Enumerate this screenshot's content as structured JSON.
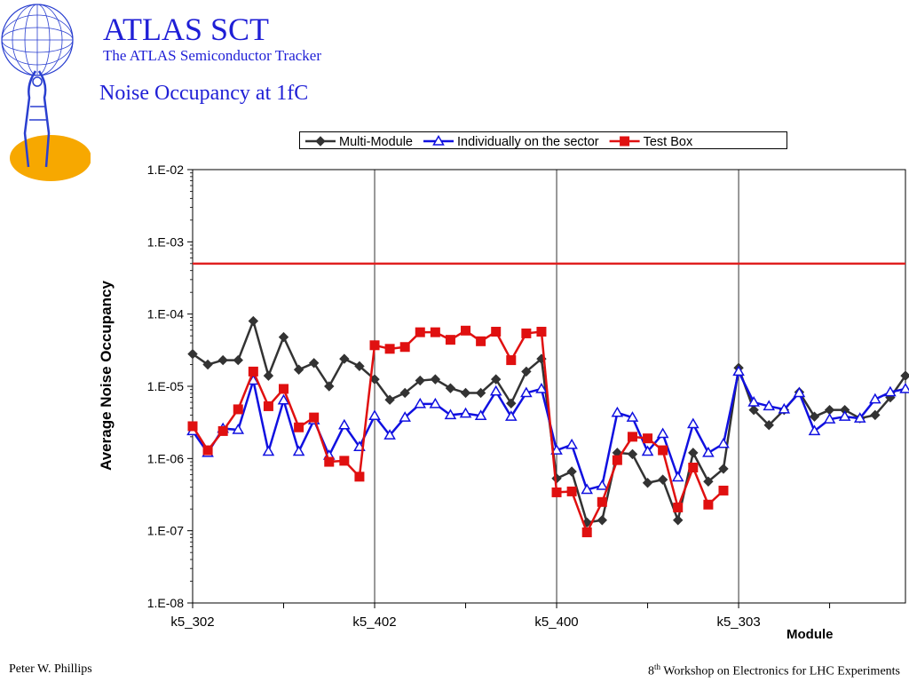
{
  "header": {
    "title": "ATLAS SCT",
    "subtitle": "The ATLAS Semiconductor Tracker",
    "logo_icon": "atlas-globe-logo-icon"
  },
  "slide": {
    "title": "Noise Occupancy at 1fC"
  },
  "footer": {
    "author": "Peter W. Phillips",
    "workshop_num": "8",
    "workshop_sup": "th",
    "workshop_text": " Workshop on Electronics for LHC Experiments"
  },
  "colors": {
    "accent": "#1f1fd6",
    "logo_orange": "#f7a800",
    "grid": "#000000"
  },
  "chart_data": {
    "type": "line",
    "title": "",
    "xlabel": "Module",
    "ylabel": "Average Noise Occupancy",
    "y_scale": "log",
    "ylim": [
      1e-08,
      0.01
    ],
    "y_ticks": [
      {
        "value": 0.01,
        "label": "1.E-02"
      },
      {
        "value": 0.001,
        "label": "1.E-03"
      },
      {
        "value": 0.0001,
        "label": "1.E-04"
      },
      {
        "value": 1e-05,
        "label": "1.E-05"
      },
      {
        "value": 1e-06,
        "label": "1.E-06"
      },
      {
        "value": 1e-07,
        "label": "1.E-07"
      },
      {
        "value": 1e-08,
        "label": "1.E-08"
      }
    ],
    "xlim": [
      0,
      47
    ],
    "x_tick_labels": [
      {
        "x": 0,
        "label": "k5_302"
      },
      {
        "x": 12,
        "label": "k5_402"
      },
      {
        "x": 24,
        "label": "k5_400"
      },
      {
        "x": 36,
        "label": "k5_303"
      }
    ],
    "x_minor_ticks": [
      6,
      18,
      30,
      42
    ],
    "x_vertical_grid": [
      12,
      24,
      36
    ],
    "legend_position": "top",
    "reference_line": {
      "y": 0.0005,
      "color": "#e02020"
    },
    "series": [
      {
        "name": "Multi-Module",
        "color": "#333333",
        "marker": "diamond",
        "x": [
          0,
          1,
          2,
          3,
          4,
          5,
          6,
          7,
          8,
          9,
          10,
          11,
          12,
          13,
          14,
          15,
          16,
          17,
          18,
          19,
          20,
          21,
          22,
          23,
          24,
          25,
          26,
          27,
          28,
          29,
          30,
          31,
          32,
          33,
          34,
          35,
          36,
          37,
          38,
          39,
          40,
          41,
          42,
          43,
          44,
          45,
          46,
          47
        ],
        "values": [
          2.8e-05,
          2e-05,
          2.3e-05,
          2.3e-05,
          8e-05,
          1.4e-05,
          4.8e-05,
          1.7e-05,
          2.1e-05,
          1e-05,
          2.4e-05,
          1.9e-05,
          1.25e-05,
          6.5e-06,
          8.1e-06,
          1.2e-05,
          1.25e-05,
          9.4e-06,
          8.1e-06,
          8.1e-06,
          1.25e-05,
          5.8e-06,
          1.6e-05,
          2.4e-05,
          5.3e-07,
          6.6e-07,
          1.3e-07,
          1.4e-07,
          1.2e-06,
          1.15e-06,
          4.6e-07,
          5.1e-07,
          1.4e-07,
          1.2e-06,
          4.8e-07,
          7.2e-07,
          1.8e-05,
          4.7e-06,
          2.9e-06,
          4.7e-06,
          8.3e-06,
          3.8e-06,
          4.7e-06,
          4.7e-06,
          3.6e-06,
          4e-06,
          7e-06,
          1.4e-05
        ]
      },
      {
        "name": "Individually on the sector",
        "color": "#1010e0",
        "marker": "triangle",
        "x": [
          0,
          1,
          2,
          3,
          4,
          5,
          6,
          7,
          8,
          9,
          10,
          11,
          12,
          13,
          14,
          15,
          16,
          17,
          18,
          19,
          20,
          21,
          22,
          23,
          24,
          25,
          26,
          27,
          28,
          29,
          30,
          31,
          32,
          33,
          34,
          35,
          36,
          37,
          38,
          39,
          40,
          41,
          42,
          43,
          44,
          45,
          46,
          47
        ],
        "values": [
          2.4e-06,
          1.2e-06,
          2.6e-06,
          2.5e-06,
          1.2e-05,
          1.25e-06,
          6.4e-06,
          1.25e-06,
          3.4e-06,
          1.1e-06,
          2.9e-06,
          1.45e-06,
          3.9e-06,
          2.1e-06,
          3.7e-06,
          5.7e-06,
          5.7e-06,
          4e-06,
          4.2e-06,
          3.9e-06,
          8.5e-06,
          3.8e-06,
          8.1e-06,
          9.2e-06,
          1.3e-06,
          1.55e-06,
          3.7e-07,
          4.2e-07,
          4.3e-06,
          3.7e-06,
          1.25e-06,
          2.2e-06,
          5.5e-07,
          3e-06,
          1.2e-06,
          1.6e-06,
          1.6e-05,
          6e-06,
          5.3e-06,
          4.8e-06,
          8.1e-06,
          2.4e-06,
          3.5e-06,
          3.8e-06,
          3.6e-06,
          6.6e-06,
          8.3e-06,
          9.2e-06
        ]
      },
      {
        "name": "Test Box",
        "color": "#e01010",
        "marker": "square",
        "x": [
          0,
          1,
          2,
          3,
          4,
          5,
          6,
          7,
          8,
          9,
          10,
          11,
          12,
          13,
          14,
          15,
          16,
          17,
          18,
          19,
          20,
          21,
          22,
          23,
          24,
          25,
          26,
          27,
          28,
          29,
          30,
          31,
          32,
          33,
          34,
          35
        ],
        "values": [
          2.8e-06,
          1.3e-06,
          2.4e-06,
          4.8e-06,
          1.6e-05,
          5.3e-06,
          9.2e-06,
          2.7e-06,
          3.7e-06,
          9e-07,
          9.3e-07,
          5.6e-07,
          3.7e-05,
          3.3e-05,
          3.5e-05,
          5.6e-05,
          5.6e-05,
          4.4e-05,
          5.9e-05,
          4.2e-05,
          5.7e-05,
          2.3e-05,
          5.4e-05,
          5.7e-05,
          3.4e-07,
          3.5e-07,
          9.5e-08,
          2.5e-07,
          9.5e-07,
          2e-06,
          1.9e-06,
          1.3e-06,
          2.1e-07,
          7.5e-07,
          2.3e-07,
          3.6e-07
        ]
      }
    ]
  }
}
